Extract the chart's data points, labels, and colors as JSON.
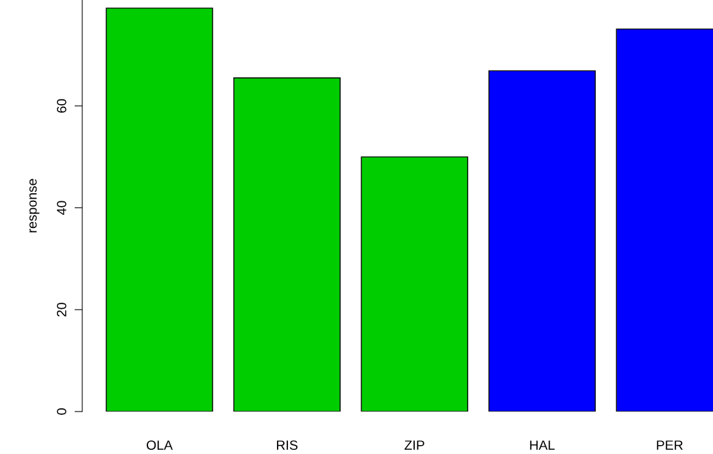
{
  "chart_data": {
    "type": "bar",
    "ylabel": "response",
    "categories": [
      "OLA",
      "RIS",
      "ZIP",
      "HAL",
      "PER"
    ],
    "values": [
      79.2,
      65.5,
      50.0,
      66.9,
      75.1
    ],
    "colors": [
      "#00cd00",
      "#00cd00",
      "#00cd00",
      "#0000ff",
      "#0000ff"
    ],
    "ylim": [
      0,
      80.8
    ],
    "yticks": [
      0,
      20,
      40,
      60
    ],
    "grid": false
  }
}
